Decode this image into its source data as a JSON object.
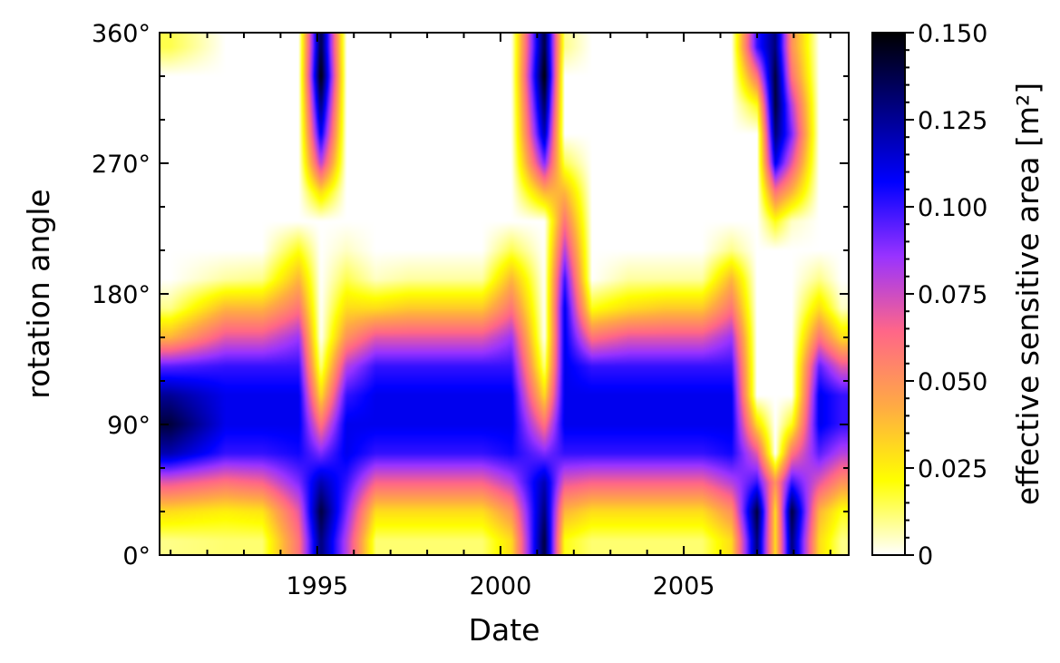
{
  "chart_data": {
    "type": "heatmap",
    "xlabel": "Date",
    "ylabel": "rotation angle",
    "colorbar_label": "effective sensitive area [m²]",
    "x_range": [
      1990.7,
      2009.5
    ],
    "y_range": [
      0,
      360
    ],
    "x_ticks": [
      {
        "value": 1995,
        "label": "1995"
      },
      {
        "value": 2000,
        "label": "2000"
      },
      {
        "value": 2005,
        "label": "2005"
      }
    ],
    "y_ticks": [
      {
        "value": 0,
        "label": "0°"
      },
      {
        "value": 90,
        "label": "90°"
      },
      {
        "value": 180,
        "label": "180°"
      },
      {
        "value": 270,
        "label": "270°"
      },
      {
        "value": 360,
        "label": "360°"
      }
    ],
    "colorbar_ticks": [
      {
        "value": 0,
        "label": "0"
      },
      {
        "value": 0.025,
        "label": "0.025"
      },
      {
        "value": 0.05,
        "label": "0.050"
      },
      {
        "value": 0.075,
        "label": "0.075"
      },
      {
        "value": 0.1,
        "label": "0.100"
      },
      {
        "value": 0.125,
        "label": "0.125"
      },
      {
        "value": 0.15,
        "label": "0.150"
      }
    ],
    "colorbar_range": [
      0,
      0.15
    ],
    "colormap": [
      "#ffffff",
      "#ffff00",
      "#ffaa44",
      "#ff6688",
      "#9933ff",
      "#0000ff",
      "#000080",
      "#000000"
    ],
    "data_grid": {
      "x_centers": [
        1991.0,
        1992.5,
        1993.5,
        1994.5,
        1995.1,
        1995.8,
        1996.6,
        1997.5,
        1998.5,
        1999.5,
        2000.3,
        2001.2,
        2001.75,
        2002.5,
        2003.5,
        2004.5,
        2005.5,
        2006.3,
        2007.0,
        2007.5,
        2007.95,
        2008.7,
        2009.3
      ],
      "y_centers": [
        10,
        30,
        50,
        70,
        90,
        110,
        130,
        150,
        170,
        190,
        210,
        230,
        250,
        270,
        290,
        310,
        330,
        350
      ],
      "values": [
        [
          0.01,
          0.012,
          0.012,
          0.06,
          0.13,
          0.08,
          0.012,
          0.012,
          0.012,
          0.012,
          0.03,
          0.14,
          0.02,
          0.012,
          0.012,
          0.012,
          0.012,
          0.03,
          0.13,
          0.03,
          0.13,
          0.03,
          0.01
        ],
        [
          0.03,
          0.025,
          0.028,
          0.07,
          0.14,
          0.09,
          0.03,
          0.03,
          0.03,
          0.03,
          0.05,
          0.13,
          0.04,
          0.03,
          0.03,
          0.03,
          0.03,
          0.05,
          0.14,
          0.03,
          0.14,
          0.04,
          0.02
        ],
        [
          0.07,
          0.06,
          0.065,
          0.09,
          0.12,
          0.1,
          0.065,
          0.065,
          0.065,
          0.065,
          0.08,
          0.12,
          0.07,
          0.065,
          0.065,
          0.065,
          0.065,
          0.08,
          0.1,
          0.05,
          0.1,
          0.07,
          0.05
        ],
        [
          0.12,
          0.1,
          0.1,
          0.105,
          0.09,
          0.11,
          0.1,
          0.1,
          0.1,
          0.1,
          0.105,
          0.09,
          0.1,
          0.1,
          0.1,
          0.1,
          0.1,
          0.105,
          0.07,
          0.0,
          0.06,
          0.095,
          0.08
        ],
        [
          0.14,
          0.11,
          0.11,
          0.11,
          0.06,
          0.11,
          0.11,
          0.11,
          0.11,
          0.11,
          0.11,
          0.06,
          0.11,
          0.11,
          0.11,
          0.11,
          0.11,
          0.11,
          0.03,
          0.0,
          0.02,
          0.11,
          0.1
        ],
        [
          0.125,
          0.11,
          0.11,
          0.11,
          0.03,
          0.1,
          0.11,
          0.11,
          0.11,
          0.11,
          0.11,
          0.03,
          0.11,
          0.11,
          0.11,
          0.11,
          0.11,
          0.11,
          0.0,
          0.0,
          0.0,
          0.11,
          0.1
        ],
        [
          0.095,
          0.1,
          0.1,
          0.1,
          0.01,
          0.08,
          0.1,
          0.1,
          0.1,
          0.1,
          0.1,
          0.01,
          0.11,
          0.1,
          0.1,
          0.1,
          0.1,
          0.1,
          0.0,
          0.0,
          0.0,
          0.095,
          0.07
        ],
        [
          0.04,
          0.07,
          0.07,
          0.085,
          0.0,
          0.05,
          0.07,
          0.07,
          0.07,
          0.07,
          0.085,
          0.0,
          0.11,
          0.06,
          0.07,
          0.07,
          0.07,
          0.085,
          0.0,
          0.0,
          0.0,
          0.06,
          0.03
        ],
        [
          0.01,
          0.04,
          0.04,
          0.06,
          0.0,
          0.03,
          0.03,
          0.035,
          0.035,
          0.035,
          0.06,
          0.0,
          0.11,
          0.02,
          0.03,
          0.035,
          0.035,
          0.06,
          0.0,
          0.0,
          0.0,
          0.03,
          0.005
        ],
        [
          0.0,
          0.008,
          0.01,
          0.04,
          0.0,
          0.015,
          0.005,
          0.008,
          0.008,
          0.008,
          0.04,
          0.0,
          0.1,
          0.0,
          0.008,
          0.008,
          0.008,
          0.04,
          0.0,
          0.0,
          0.0,
          0.01,
          0.0
        ],
        [
          0.0,
          0.0,
          0.0,
          0.02,
          0.0,
          0.005,
          0.0,
          0.0,
          0.0,
          0.0,
          0.015,
          0.0,
          0.08,
          0.0,
          0.0,
          0.0,
          0.0,
          0.01,
          0.0,
          0.0,
          0.0,
          0.0,
          0.0
        ],
        [
          0.0,
          0.0,
          0.0,
          0.0,
          0.0,
          0.0,
          0.0,
          0.0,
          0.0,
          0.0,
          0.0,
          0.0,
          0.06,
          0.0,
          0.0,
          0.0,
          0.0,
          0.0,
          0.0,
          0.02,
          0.005,
          0.0,
          0.0
        ],
        [
          0.0,
          0.0,
          0.0,
          0.0,
          0.03,
          0.0,
          0.0,
          0.0,
          0.0,
          0.0,
          0.0,
          0.04,
          0.04,
          0.0,
          0.0,
          0.0,
          0.0,
          0.0,
          0.0,
          0.06,
          0.04,
          0.0,
          0.0
        ],
        [
          0.0,
          0.0,
          0.0,
          0.0,
          0.08,
          0.0,
          0.0,
          0.0,
          0.0,
          0.0,
          0.0,
          0.09,
          0.015,
          0.0,
          0.0,
          0.0,
          0.0,
          0.0,
          0.0,
          0.11,
          0.07,
          0.0,
          0.0
        ],
        [
          0.0,
          0.0,
          0.0,
          0.0,
          0.11,
          0.0,
          0.0,
          0.0,
          0.0,
          0.0,
          0.0,
          0.12,
          0.0,
          0.0,
          0.0,
          0.0,
          0.0,
          0.0,
          0.0,
          0.13,
          0.09,
          0.0,
          0.0
        ],
        [
          0.0,
          0.0,
          0.0,
          0.0,
          0.13,
          0.0,
          0.0,
          0.0,
          0.0,
          0.0,
          0.0,
          0.135,
          0.0,
          0.0,
          0.0,
          0.0,
          0.0,
          0.0,
          0.02,
          0.14,
          0.08,
          0.0,
          0.0
        ],
        [
          0.0,
          0.0,
          0.0,
          0.0,
          0.15,
          0.0,
          0.0,
          0.0,
          0.0,
          0.0,
          0.0,
          0.15,
          0.0,
          0.0,
          0.0,
          0.0,
          0.0,
          0.0,
          0.06,
          0.14,
          0.06,
          0.0,
          0.0
        ],
        [
          0.015,
          0.0,
          0.0,
          0.0,
          0.14,
          0.0,
          0.0,
          0.0,
          0.0,
          0.0,
          0.0,
          0.14,
          0.01,
          0.0,
          0.0,
          0.0,
          0.0,
          0.0,
          0.1,
          0.13,
          0.05,
          0.0,
          0.0
        ]
      ]
    }
  }
}
